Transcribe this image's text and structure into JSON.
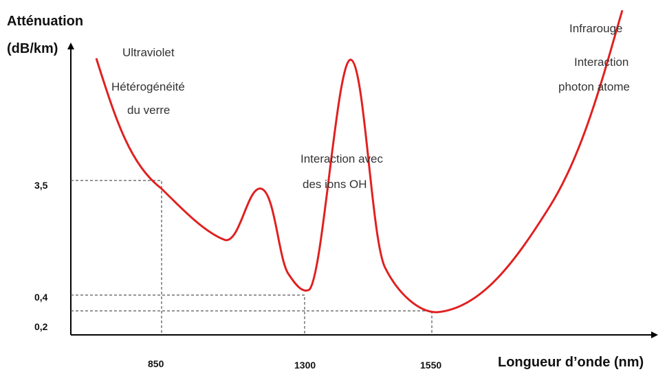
{
  "axis": {
    "y_title_1": "Atténuation",
    "y_title_2": "(dB/km)",
    "x_title": "Longueur d’onde (nm)",
    "y_labels": [
      "3,5",
      "0,4",
      "0,2"
    ],
    "x_labels": [
      "850",
      "1300",
      "1550"
    ]
  },
  "annotations": {
    "ultraviolet": "Ultraviolet",
    "heterogeneite": "Hétérogénéité",
    "verre": "du verre",
    "oh_1": "Interaction avec",
    "oh_2": "des ions OH",
    "infrarouge": "Infrarouge",
    "ir_1": "Interaction",
    "ir_2": "photon atome"
  }
}
